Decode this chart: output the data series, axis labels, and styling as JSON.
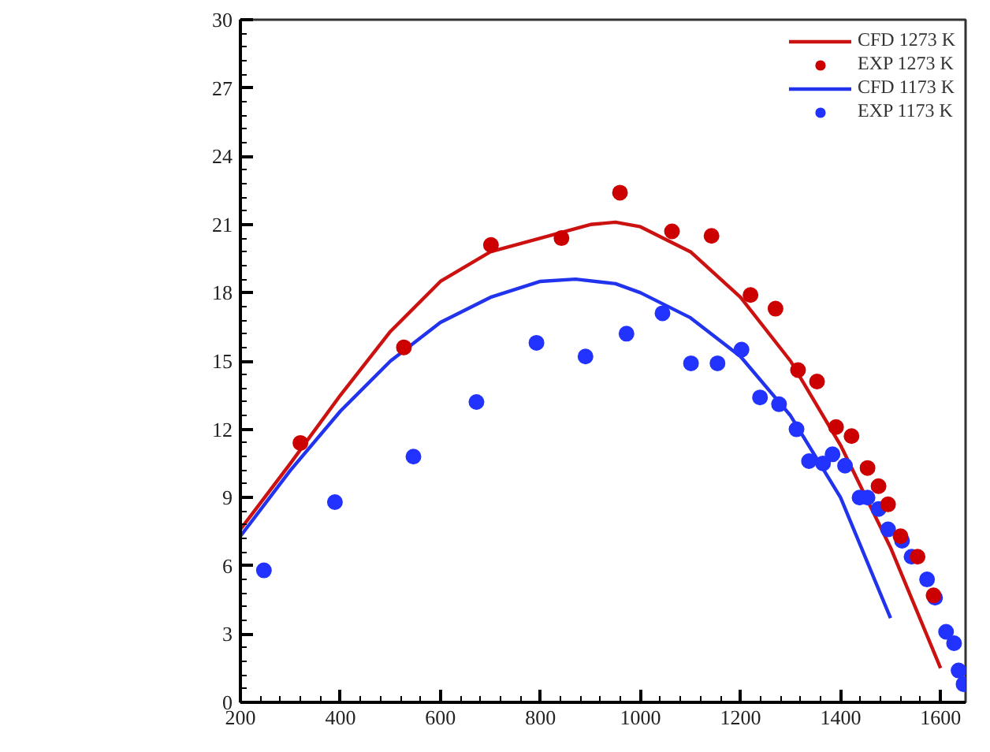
{
  "chart_data": {
    "type": "line",
    "xlim": [
      200,
      1650
    ],
    "ylim": [
      0,
      30
    ],
    "xticks": [
      200,
      400,
      600,
      800,
      1000,
      1200,
      1400,
      1600
    ],
    "yticks": [
      0,
      3,
      6,
      9,
      12,
      15,
      18,
      21,
      24,
      27,
      30
    ],
    "legend": "top right",
    "grid": false,
    "series": [
      {
        "name": "CFD 1273 K",
        "color": "#cc1111",
        "x": [
          200,
          300,
          400,
          500,
          600,
          700,
          800,
          900,
          950,
          1000,
          1100,
          1200,
          1300,
          1400,
          1500,
          1600
        ],
        "values": [
          7.6,
          10.5,
          13.5,
          16.3,
          18.5,
          19.8,
          20.4,
          21.0,
          21.1,
          20.9,
          19.8,
          17.8,
          15.0,
          11.3,
          6.8,
          1.5
        ]
      },
      {
        "name": "EXP 1273 K",
        "type": "scatter",
        "marker": "circle",
        "color": "#cc0000",
        "x": [
          320,
          527,
          701,
          842,
          959,
          1063,
          1142,
          1220,
          1270,
          1315,
          1353,
          1391,
          1422,
          1454,
          1476,
          1495,
          1520,
          1554,
          1586
        ],
        "values": [
          11.4,
          15.6,
          20.1,
          20.4,
          22.4,
          20.7,
          20.5,
          17.9,
          17.3,
          14.6,
          14.1,
          12.1,
          11.7,
          10.3,
          9.5,
          8.7,
          7.3,
          6.4,
          4.7
        ]
      },
      {
        "name": "CFD 1173 K",
        "color": "#2233ee",
        "x": [
          200,
          300,
          400,
          500,
          600,
          700,
          800,
          870,
          950,
          1000,
          1100,
          1200,
          1300,
          1400,
          1500
        ],
        "values": [
          7.3,
          10.2,
          12.8,
          15.0,
          16.7,
          17.8,
          18.5,
          18.6,
          18.4,
          18.0,
          16.9,
          15.2,
          12.6,
          9.0,
          3.7
        ]
      },
      {
        "name": "EXP 1173 K",
        "type": "scatter",
        "marker": "circle",
        "color": "#2233ff",
        "x": [
          247,
          389,
          546,
          672,
          792,
          890,
          972,
          1044,
          1101,
          1154,
          1202,
          1239,
          1277,
          1312,
          1337,
          1365,
          1384,
          1409,
          1438,
          1454,
          1476,
          1495,
          1523,
          1542,
          1573,
          1589,
          1611,
          1627,
          1636,
          1646
        ],
        "values": [
          5.8,
          8.8,
          10.8,
          13.2,
          15.8,
          15.2,
          16.2,
          17.1,
          14.9,
          14.9,
          15.5,
          13.4,
          13.1,
          12.0,
          10.6,
          10.5,
          10.9,
          10.4,
          9.0,
          9.0,
          8.5,
          7.6,
          7.1,
          6.4,
          5.4,
          4.6,
          3.1,
          2.6,
          1.4,
          0.8
        ]
      }
    ]
  }
}
